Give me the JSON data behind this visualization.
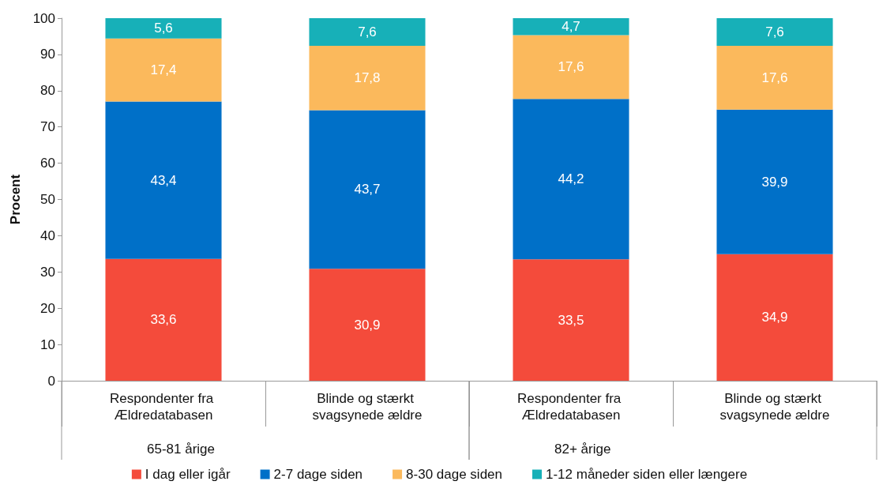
{
  "chart_data": {
    "type": "bar",
    "stacked": true,
    "ylabel": "Procent",
    "categories": [
      "Respondenter fra Ældredatabasen",
      "Blinde og stærkt svagsynede ældre",
      "Respondenter fra Ældredatabasen",
      "Blinde og stærkt svagsynede ældre"
    ],
    "series": [
      {
        "name": "I dag eller igår",
        "color": "#f44b3b",
        "values": [
          33.6,
          30.9,
          33.5,
          34.9
        ],
        "value_labels": [
          "33,6",
          "30,9",
          "33,5",
          "34,9"
        ]
      },
      {
        "name": "2-7 dage siden",
        "color": "#0070c8",
        "values": [
          43.4,
          43.7,
          44.2,
          39.9
        ],
        "value_labels": [
          "43,4",
          "43,7",
          "44,2",
          "39,9"
        ]
      },
      {
        "name": "8-30 dage siden",
        "color": "#fbb95c",
        "values": [
          17.4,
          17.8,
          17.6,
          17.6
        ],
        "value_labels": [
          "17,4",
          "17,8",
          "17,6",
          "17,6"
        ]
      },
      {
        "name": "1-12 måneder siden eller længere",
        "color": "#17b0b8",
        "values": [
          5.6,
          7.6,
          4.7,
          7.6
        ],
        "value_labels": [
          "5,6",
          "7,6",
          "4,7",
          "7,6"
        ]
      }
    ],
    "ylim": [
      0,
      100
    ],
    "yticks": [
      0,
      10,
      20,
      30,
      40,
      50,
      60,
      70,
      80,
      90,
      100
    ],
    "grid": false,
    "legend": "bottom",
    "annotations": [
      "65-81 årige",
      "82+ årige"
    ]
  }
}
